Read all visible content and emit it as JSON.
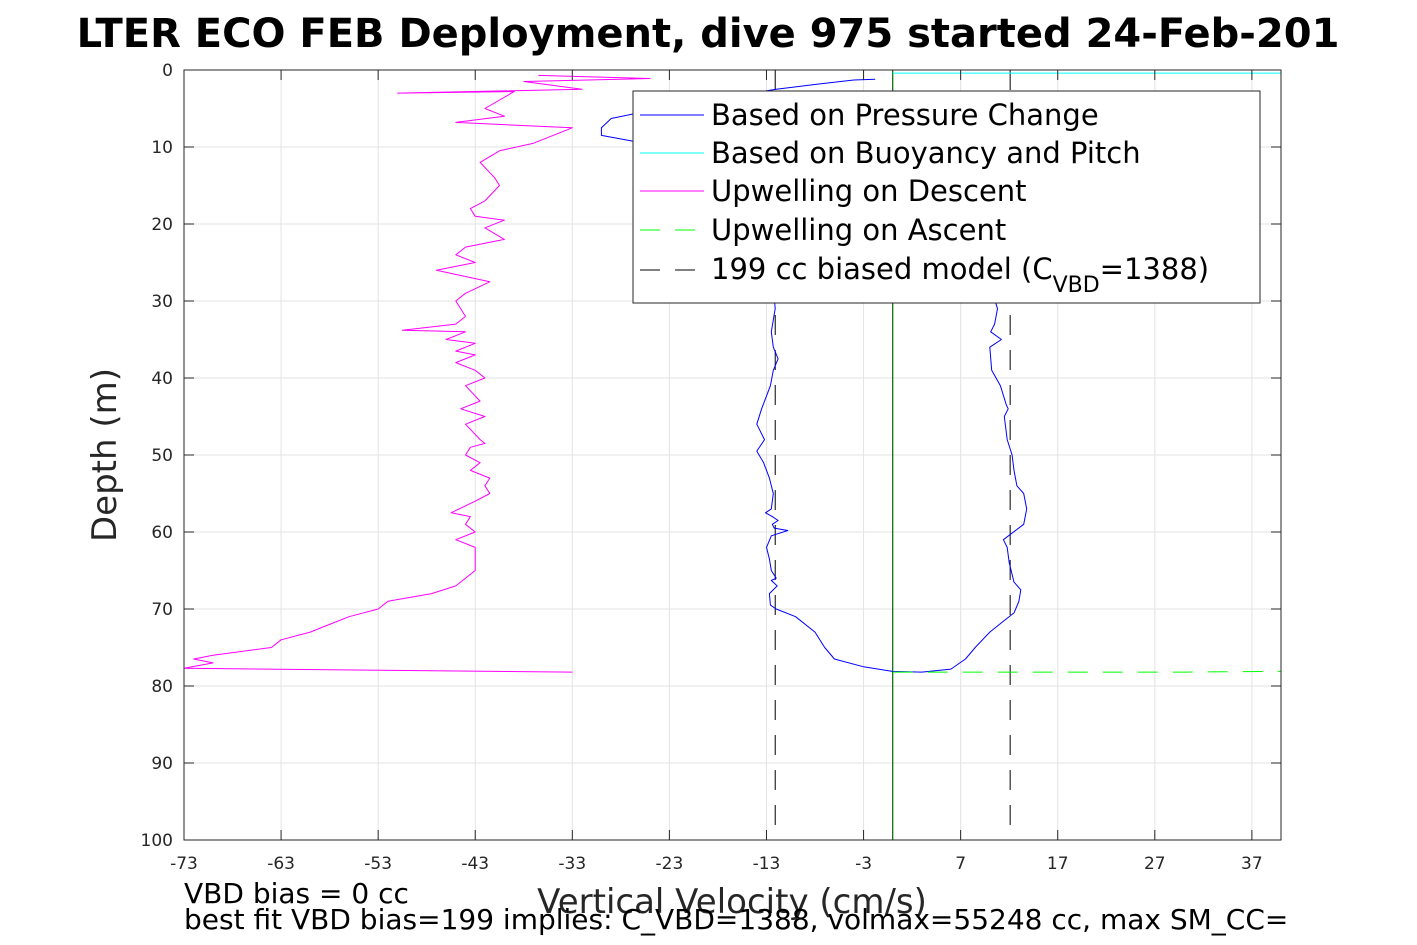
{
  "chart_data": {
    "type": "line",
    "title": "LTER ECO FEB Deployment, dive 975 started 24-Feb-201",
    "xlabel": "Vertical Velocity (cm/s)",
    "ylabel": "Depth (m)",
    "xlim": [
      -73,
      40
    ],
    "ylim": [
      0,
      100
    ],
    "y_reversed": true,
    "grid": true,
    "x_ticks": [
      "-73",
      "-63",
      "-53",
      "-43",
      "-33",
      "-23",
      "-13",
      "-3",
      "7",
      "17",
      "27",
      "37"
    ],
    "x_tick_values": [
      -73,
      -63,
      -53,
      -43,
      -33,
      -23,
      -13,
      -3,
      7,
      17,
      27,
      37
    ],
    "y_ticks": [
      "0",
      "10",
      "20",
      "30",
      "40",
      "50",
      "60",
      "70",
      "80",
      "90",
      "100"
    ],
    "y_tick_values": [
      0,
      10,
      20,
      30,
      40,
      50,
      60,
      70,
      80,
      90,
      100
    ],
    "legend_position": "top-right",
    "legend": [
      {
        "label": "Based on Pressure Change",
        "color": "#0000ff",
        "dash": "solid"
      },
      {
        "label": "Based on Buoyancy and Pitch",
        "color": "#00ffff",
        "dash": "solid"
      },
      {
        "label": "Upwelling on Descent",
        "color": "#ff00ff",
        "dash": "solid"
      },
      {
        "label": "Upwelling on Ascent",
        "color": "#00ff00",
        "dash": "dashed"
      },
      {
        "label_main": "199 cc biased model (C",
        "label_sub": "VBD",
        "label_end": "=1388)",
        "color": "#000000",
        "dash": "dashed"
      }
    ],
    "series": [
      {
        "name": "Based on Pressure Change",
        "color": "#0000ff",
        "dash": "solid",
        "points": [
          [
            -1.8,
            1.2
          ],
          [
            -4,
            1.3
          ],
          [
            -7.5,
            1.8
          ],
          [
            -12,
            2.5
          ],
          [
            -17,
            3.5
          ],
          [
            -24,
            5
          ],
          [
            -29,
            6.3
          ],
          [
            -30,
            7.5
          ],
          [
            -30,
            8.5
          ],
          [
            -27,
            9.2
          ],
          [
            -24,
            10
          ],
          [
            -21.5,
            10.7
          ],
          [
            -21,
            12
          ],
          [
            -18,
            14
          ],
          [
            -15,
            17
          ],
          [
            -13.5,
            20
          ],
          [
            -12.8,
            25
          ],
          [
            -12.3,
            28
          ],
          [
            -12.1,
            31
          ],
          [
            -12.5,
            34
          ],
          [
            -12.3,
            36
          ],
          [
            -11.8,
            37.5
          ],
          [
            -12.3,
            39
          ],
          [
            -12.6,
            41
          ],
          [
            -13.5,
            44
          ],
          [
            -14,
            46
          ],
          [
            -13.2,
            48
          ],
          [
            -14,
            49.5
          ],
          [
            -13.3,
            51
          ],
          [
            -12.7,
            53
          ],
          [
            -12.3,
            55
          ],
          [
            -12.5,
            57
          ],
          [
            -13.1,
            57.5
          ],
          [
            -12.4,
            58
          ],
          [
            -11.8,
            58.5
          ],
          [
            -12.4,
            59
          ],
          [
            -12.2,
            59.5
          ],
          [
            -10.8,
            59.8
          ],
          [
            -12.5,
            60.5
          ],
          [
            -13,
            62
          ],
          [
            -12.7,
            63.5
          ],
          [
            -12.5,
            65
          ],
          [
            -12,
            66
          ],
          [
            -12.5,
            66.3
          ],
          [
            -11.9,
            67
          ],
          [
            -12.7,
            68
          ],
          [
            -12.6,
            69.5
          ],
          [
            -12,
            70
          ],
          [
            -10,
            71
          ],
          [
            -8,
            73
          ],
          [
            -7,
            75
          ],
          [
            -6,
            76.5
          ],
          [
            -3,
            77.5
          ],
          [
            0,
            78.1
          ],
          [
            3,
            78.2
          ],
          [
            6,
            77.8
          ],
          [
            7.5,
            76.5
          ],
          [
            8.5,
            75
          ],
          [
            10,
            73
          ],
          [
            11.5,
            71.5
          ],
          [
            12.5,
            70.5
          ],
          [
            13,
            69
          ],
          [
            13.2,
            67.5
          ],
          [
            12.5,
            66.5
          ],
          [
            12,
            64
          ],
          [
            11.8,
            62
          ],
          [
            11.4,
            61
          ],
          [
            13.5,
            59
          ],
          [
            13.8,
            57
          ],
          [
            13.5,
            55
          ],
          [
            12.8,
            54
          ],
          [
            12.5,
            52
          ],
          [
            12.3,
            50
          ],
          [
            11.8,
            48
          ],
          [
            11.5,
            45
          ],
          [
            11.9,
            44
          ],
          [
            11.7,
            43.5
          ],
          [
            11.1,
            41
          ],
          [
            10.2,
            39
          ],
          [
            10,
            36
          ],
          [
            11.2,
            35
          ],
          [
            10.1,
            34
          ],
          [
            10.5,
            33
          ],
          [
            10.8,
            31
          ],
          [
            10.3,
            29
          ]
        ]
      },
      {
        "name": "Based on Buoyancy and Pitch",
        "color": "#00ffff",
        "dash": "solid",
        "points": [
          [
            0,
            0.4
          ],
          [
            10,
            0.4
          ],
          [
            20,
            0.4
          ],
          [
            30,
            0.4
          ],
          [
            38,
            0.4
          ],
          [
            40,
            0.4
          ]
        ]
      },
      {
        "name": "Upwelling on Descent",
        "color": "#ff00ff",
        "dash": "solid",
        "points": [
          [
            -36.5,
            0.7
          ],
          [
            -25,
            1.1
          ],
          [
            -38,
            1.5
          ],
          [
            -32,
            2.5
          ],
          [
            -51,
            3
          ],
          [
            -39,
            2.8
          ],
          [
            -42,
            5
          ],
          [
            -40,
            6
          ],
          [
            -45,
            6.8
          ],
          [
            -33,
            7.5
          ],
          [
            -37,
            9.5
          ],
          [
            -40.5,
            10.5
          ],
          [
            -42.5,
            12
          ],
          [
            -41,
            14
          ],
          [
            -40.5,
            15
          ],
          [
            -42,
            17
          ],
          [
            -43.5,
            18
          ],
          [
            -43,
            19
          ],
          [
            -40,
            19.5
          ],
          [
            -42,
            20.5
          ],
          [
            -40,
            22
          ],
          [
            -44,
            23
          ],
          [
            -45,
            24
          ],
          [
            -43,
            25
          ],
          [
            -47,
            26
          ],
          [
            -41.5,
            27.5
          ],
          [
            -44,
            29
          ],
          [
            -45,
            30
          ],
          [
            -44,
            32
          ],
          [
            -45,
            33
          ],
          [
            -50.5,
            33.8
          ],
          [
            -44,
            34
          ],
          [
            -46,
            35
          ],
          [
            -43,
            35.5
          ],
          [
            -45,
            36.5
          ],
          [
            -43,
            37
          ],
          [
            -45,
            38
          ],
          [
            -43,
            39
          ],
          [
            -42,
            40
          ],
          [
            -44,
            41
          ],
          [
            -42.5,
            43
          ],
          [
            -44.5,
            44
          ],
          [
            -42,
            45
          ],
          [
            -44,
            46
          ],
          [
            -42.5,
            48
          ],
          [
            -42,
            48.5
          ],
          [
            -43.5,
            49
          ],
          [
            -44,
            50
          ],
          [
            -42.5,
            51
          ],
          [
            -43.5,
            52
          ],
          [
            -41.5,
            53
          ],
          [
            -42,
            54
          ],
          [
            -41.5,
            55
          ],
          [
            -43,
            56
          ],
          [
            -45.5,
            57.5
          ],
          [
            -43.5,
            58
          ],
          [
            -44,
            59
          ],
          [
            -43,
            60
          ],
          [
            -45,
            61
          ],
          [
            -43,
            62
          ],
          [
            -43,
            63
          ],
          [
            -43,
            65
          ],
          [
            -45,
            67
          ],
          [
            -47.5,
            68
          ],
          [
            -52,
            69
          ],
          [
            -53,
            70
          ],
          [
            -56,
            71
          ],
          [
            -58,
            72
          ],
          [
            -60,
            73
          ],
          [
            -63,
            74
          ],
          [
            -64,
            75
          ],
          [
            -70,
            76
          ],
          [
            -72,
            76.5
          ],
          [
            -70,
            77
          ],
          [
            -73,
            77.7
          ],
          [
            -33,
            78.2
          ]
        ]
      },
      {
        "name": "Upwelling on Ascent",
        "color": "#00ff00",
        "dash": "dashed",
        "points": [
          [
            0,
            78.2
          ],
          [
            10,
            78.2
          ],
          [
            20,
            78.2
          ],
          [
            30,
            78.2
          ],
          [
            40,
            78.1
          ]
        ]
      },
      {
        "name": "199 cc biased model (CVBD=1388)",
        "color": "#000000",
        "dash": "dashed",
        "points": []
      }
    ],
    "vertical_lines": [
      {
        "x": -12.1,
        "color": "#000000",
        "dash": "dashed"
      },
      {
        "x": 12.1,
        "color": "#000000",
        "dash": "dashed"
      },
      {
        "x": 0,
        "color": "#000000",
        "dash": "solid"
      },
      {
        "x": 0,
        "color": "#008000",
        "dash": "solid"
      }
    ],
    "footer": [
      "VBD bias = 0 cc",
      "best fit VBD bias=199 implies: C_VBD=1388, volmax=55248 cc, max SM_CC="
    ]
  }
}
